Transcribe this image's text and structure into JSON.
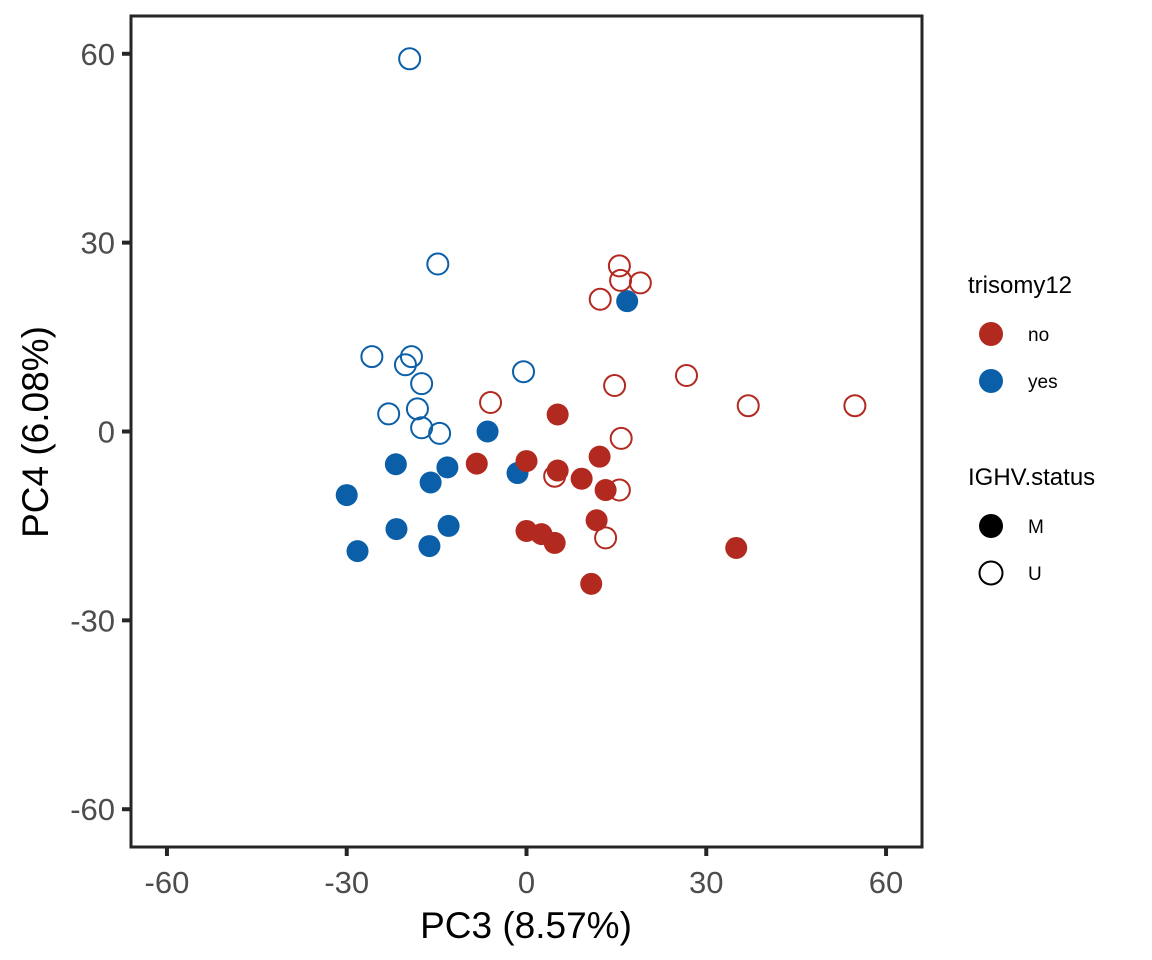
{
  "chart_data": {
    "type": "scatter",
    "title": "",
    "xlabel": "PC3 (8.57%)",
    "ylabel": "PC4 (6.08%)",
    "xlim": [
      -66,
      66
    ],
    "ylim": [
      -66,
      66
    ],
    "xticks": [
      -60,
      -30,
      0,
      30,
      60
    ],
    "yticks": [
      -60,
      -30,
      0,
      30,
      60
    ],
    "xtick_labels": [
      "-60",
      "-30",
      "0",
      "30",
      "60"
    ],
    "ytick_labels": [
      "-60",
      "-30",
      "0",
      "30",
      "60"
    ],
    "grid": false,
    "colors": {
      "no": "#b2291f",
      "yes": "#0b5fa8"
    },
    "legends": [
      {
        "title": "trisomy12",
        "position": "right",
        "entries": [
          {
            "label": "no",
            "color": "#b2291f",
            "shape": "filled"
          },
          {
            "label": "yes",
            "color": "#0b5fa8",
            "shape": "filled"
          }
        ]
      },
      {
        "title": "IGHV.status",
        "position": "right",
        "entries": [
          {
            "label": "M",
            "color": "#000000",
            "shape": "filled"
          },
          {
            "label": "U",
            "color": "#000000",
            "shape": "open"
          }
        ]
      }
    ],
    "series": [
      {
        "name": "trisomy12=yes, IGHV=U",
        "trisomy12": "yes",
        "ighv": "U",
        "points": [
          [
            -19.5,
            59.2
          ],
          [
            -14.8,
            26.6
          ],
          [
            -25.8,
            11.9
          ],
          [
            -19.2,
            11.9
          ],
          [
            -20.2,
            10.6
          ],
          [
            -17.5,
            7.6
          ],
          [
            -23.0,
            2.8
          ],
          [
            -18.2,
            3.6
          ],
          [
            -17.5,
            0.6
          ],
          [
            -14.5,
            -0.3
          ],
          [
            -0.5,
            9.5
          ]
        ]
      },
      {
        "name": "trisomy12=yes, IGHV=M",
        "trisomy12": "yes",
        "ighv": "M",
        "points": [
          [
            16.8,
            20.7
          ],
          [
            -6.5,
            0.0
          ],
          [
            -21.8,
            -5.2
          ],
          [
            -13.2,
            -5.7
          ],
          [
            -16.0,
            -8.1
          ],
          [
            -30.0,
            -10.1
          ],
          [
            -1.5,
            -6.6
          ],
          [
            -21.7,
            -15.5
          ],
          [
            -13.0,
            -15.0
          ],
          [
            -16.2,
            -18.2
          ],
          [
            -28.2,
            -19.0
          ]
        ]
      },
      {
        "name": "trisomy12=no, IGHV=U",
        "trisomy12": "no",
        "ighv": "U",
        "points": [
          [
            15.5,
            26.3
          ],
          [
            15.7,
            24.0
          ],
          [
            19.0,
            23.6
          ],
          [
            12.3,
            21.0
          ],
          [
            -6.0,
            4.6
          ],
          [
            14.7,
            7.3
          ],
          [
            26.7,
            8.9
          ],
          [
            37.0,
            4.1
          ],
          [
            54.8,
            4.1
          ],
          [
            15.8,
            -1.1
          ],
          [
            4.7,
            -7.1
          ],
          [
            15.5,
            -9.3
          ],
          [
            13.2,
            -16.9
          ]
        ]
      },
      {
        "name": "trisomy12=no, IGHV=M",
        "trisomy12": "no",
        "ighv": "M",
        "points": [
          [
            5.2,
            2.7
          ],
          [
            -8.3,
            -5.1
          ],
          [
            0.0,
            -4.7
          ],
          [
            5.2,
            -6.2
          ],
          [
            9.2,
            -7.5
          ],
          [
            12.2,
            -4.0
          ],
          [
            13.2,
            -9.3
          ],
          [
            11.7,
            -14.1
          ],
          [
            0.0,
            -15.8
          ],
          [
            2.5,
            -16.3
          ],
          [
            4.7,
            -17.7
          ],
          [
            10.8,
            -24.2
          ],
          [
            35.0,
            -18.5
          ]
        ]
      }
    ]
  }
}
